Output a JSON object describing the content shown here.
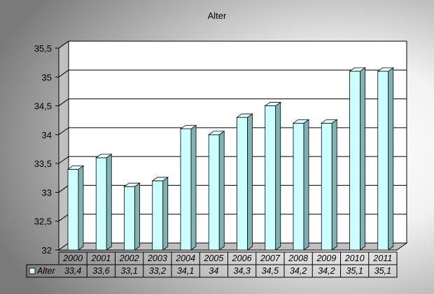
{
  "chart_data": {
    "type": "bar",
    "title": "Alter",
    "categories": [
      "2000",
      "2001",
      "2002",
      "2003",
      "2004",
      "2005",
      "2006",
      "2007",
      "2008",
      "2009",
      "2010",
      "2011"
    ],
    "series": [
      {
        "name": "Alter",
        "values": [
          33.4,
          33.6,
          33.1,
          33.2,
          34.1,
          34.0,
          34.3,
          34.5,
          34.2,
          34.2,
          35.1,
          35.1
        ],
        "value_labels": [
          "33,4",
          "33,6",
          "33,1",
          "33,2",
          "34,1",
          "34",
          "34,3",
          "34,5",
          "34,2",
          "34,2",
          "35,1",
          "35,1"
        ]
      }
    ],
    "ylim": [
      32,
      35.5
    ],
    "y_ticks": [
      32,
      32.5,
      33,
      33.5,
      34,
      34.5,
      35,
      35.5
    ],
    "y_tick_labels": [
      "32",
      "32,5",
      "33",
      "33,5",
      "34",
      "34,5",
      "35",
      "35,5"
    ],
    "grid": true,
    "data_table": true,
    "colors": {
      "bar_front": "#ccffff",
      "bar_side": "#7fb3b3",
      "bar_top": "#e6ffff",
      "grid": "#000000",
      "background_dark": "#8a8a8a",
      "background_light": "#ffffff"
    }
  }
}
